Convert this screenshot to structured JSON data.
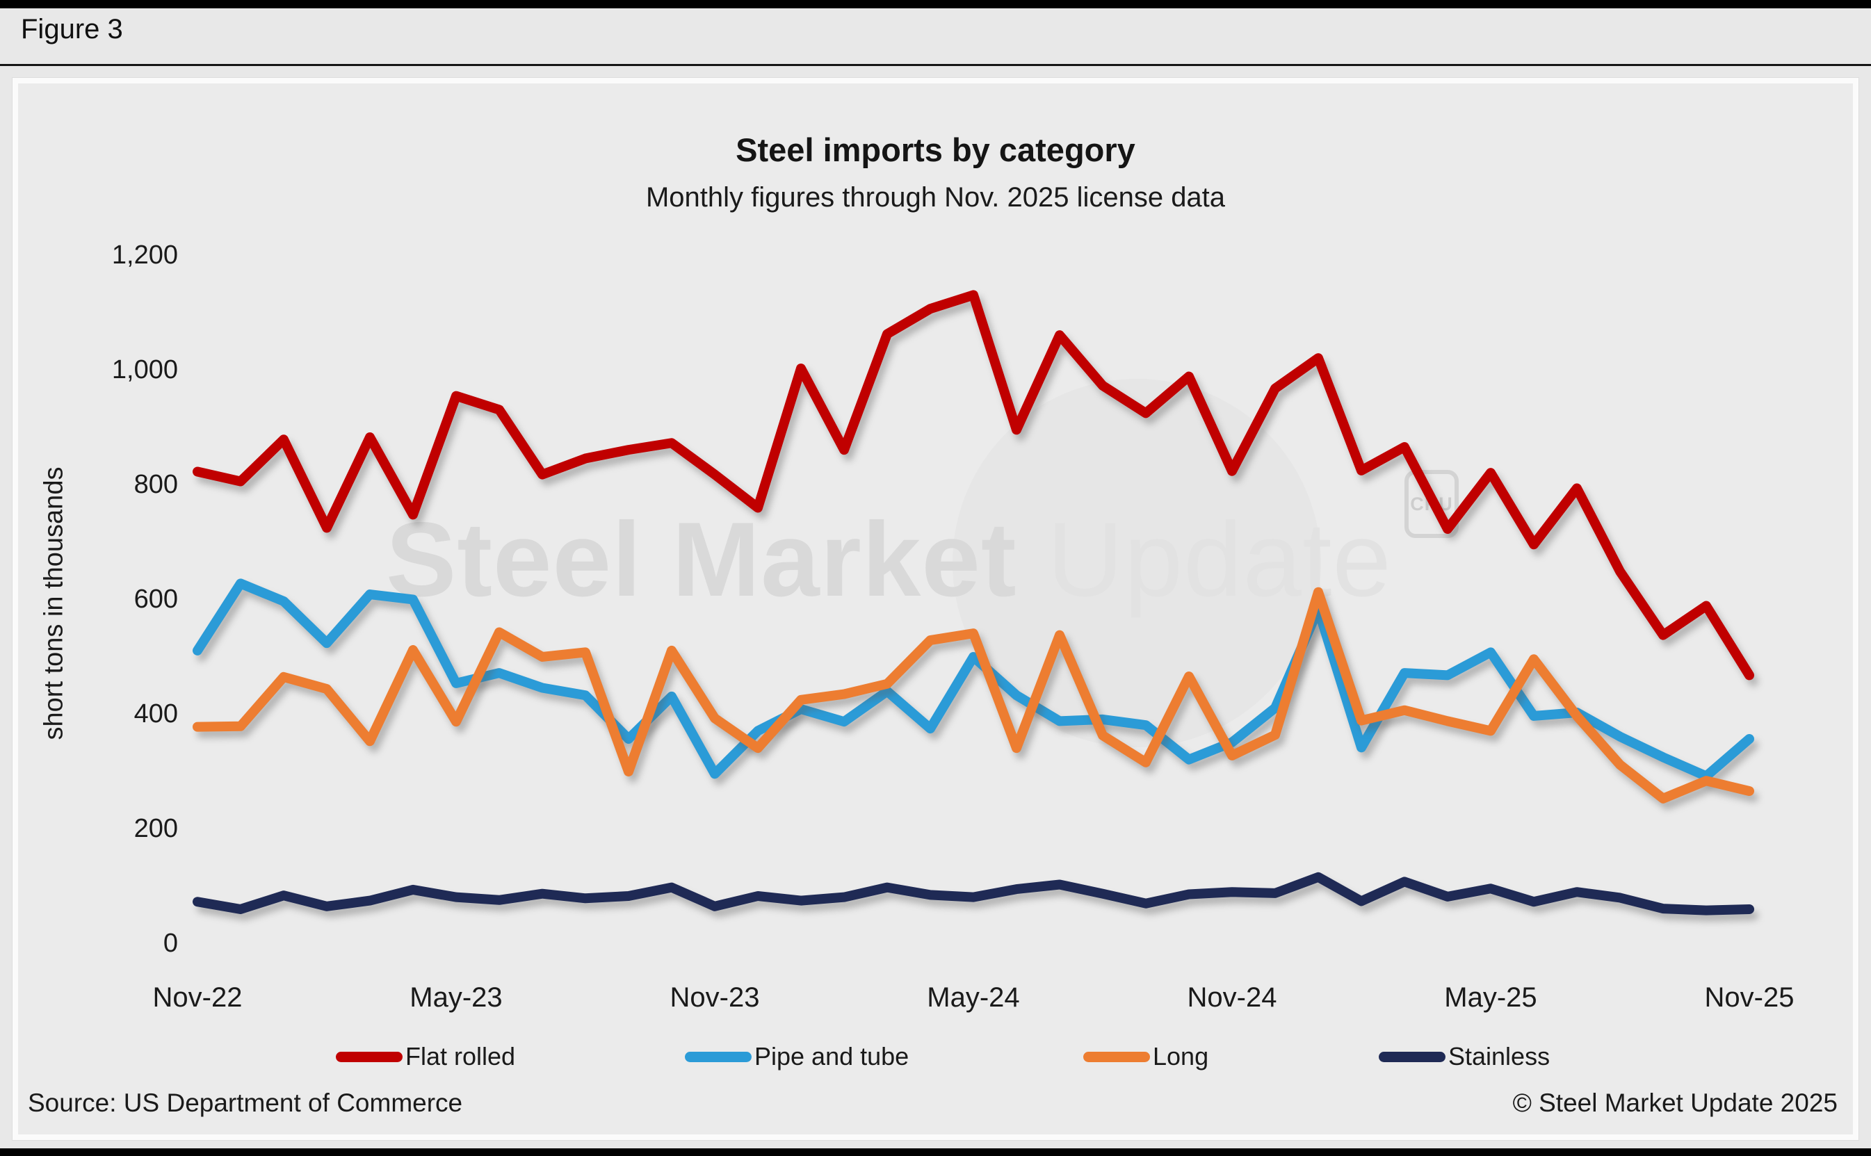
{
  "page": {
    "figure_label": "Figure 3"
  },
  "watermark": {
    "bold": "Steel Market",
    "light": " Update",
    "badge": "CRU"
  },
  "footer": {
    "source": "Source: US Department of Commerce",
    "copyright": "© Steel Market Update 2025"
  },
  "chart_data": {
    "type": "line",
    "title": "Steel imports by category",
    "subtitle": "Monthly figures through Nov. 2025 license data",
    "ylabel": "short tons in thousands",
    "ylim": [
      0,
      1200
    ],
    "ytick_step": 200,
    "grid": false,
    "legend_position": "bottom",
    "x_tick_every": 6,
    "x_tick_labels": [
      "Nov-22",
      "May-23",
      "Nov-23",
      "May-24",
      "Nov-24",
      "May-25",
      "Nov-25"
    ],
    "categories": [
      "Nov-22",
      "Dec-22",
      "Jan-23",
      "Feb-23",
      "Mar-23",
      "Apr-23",
      "May-23",
      "Jun-23",
      "Jul-23",
      "Aug-23",
      "Sep-23",
      "Oct-23",
      "Nov-23",
      "Dec-23",
      "Jan-24",
      "Feb-24",
      "Mar-24",
      "Apr-24",
      "May-24",
      "Jun-24",
      "Jul-24",
      "Aug-24",
      "Sep-24",
      "Oct-24",
      "Nov-24",
      "Dec-24",
      "Jan-25",
      "Feb-25",
      "Mar-25",
      "Apr-25",
      "May-25",
      "Jun-25",
      "Jul-25",
      "Aug-25",
      "Sep-25",
      "Oct-25",
      "Nov-25"
    ],
    "series": [
      {
        "name": "Flat rolled",
        "color": "#c00000",
        "values": [
          820,
          803,
          876,
          722,
          880,
          745,
          952,
          928,
          815,
          843,
          858,
          870,
          815,
          757,
          1000,
          858,
          1060,
          1104,
          1128,
          893,
          1058,
          970,
          922,
          986,
          821,
          965,
          1018,
          822,
          863,
          720,
          818,
          693,
          791,
          646,
          535,
          586,
          465
        ]
      },
      {
        "name": "Pipe and tube",
        "color": "#2b9bd7",
        "values": [
          508,
          625,
          594,
          521,
          606,
          597,
          451,
          469,
          443,
          430,
          354,
          428,
          293,
          368,
          406,
          384,
          437,
          372,
          497,
          430,
          385,
          388,
          378,
          318,
          348,
          408,
          580,
          339,
          469,
          465,
          505,
          394,
          400,
          358,
          322,
          289,
          354
        ]
      },
      {
        "name": "Long",
        "color": "#ed7d31",
        "values": [
          375,
          376,
          462,
          441,
          350,
          509,
          384,
          540,
          497,
          505,
          297,
          508,
          390,
          338,
          422,
          432,
          450,
          526,
          538,
          338,
          535,
          360,
          313,
          463,
          325,
          361,
          610,
          386,
          404,
          385,
          368,
          493,
          394,
          309,
          250,
          281,
          263
        ]
      },
      {
        "name": "Stainless",
        "color": "#1f2a55",
        "values": [
          70,
          57,
          81,
          62,
          72,
          91,
          78,
          73,
          84,
          76,
          80,
          95,
          62,
          80,
          72,
          78,
          95,
          82,
          78,
          92,
          100,
          84,
          67,
          83,
          87,
          85,
          113,
          71,
          105,
          79,
          93,
          70,
          87,
          77,
          58,
          55,
          57
        ]
      }
    ]
  }
}
